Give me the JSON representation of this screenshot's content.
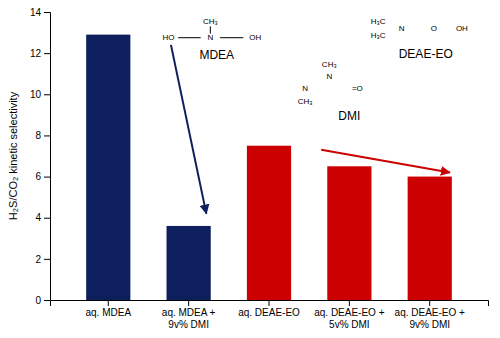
{
  "chart_data": {
    "type": "bar",
    "categories": [
      "aq. MDEA",
      "aq. MDEA +\n9v% DMI",
      "aq. DEAE-EO",
      "aq. DEAE-EO +\n5v% DMI",
      "aq. DEAE-EO +\n9v% DMI"
    ],
    "values": [
      12.9,
      3.6,
      7.5,
      6.5,
      6.0
    ],
    "colors": [
      "#0d1f5c",
      "#0d1f5c",
      "#cc0000",
      "#cc0000",
      "#cc0000"
    ],
    "ylabel": "H₂S/CO₂ kinetic selectivity",
    "ylim": [
      0,
      14
    ],
    "yticks": [
      0,
      2,
      4,
      6,
      8,
      10,
      12,
      14
    ],
    "grid": false,
    "annotations": [
      "CH₃",
      "HO",
      "N",
      "OH",
      "MDEA",
      "DMI",
      "CH₃",
      "N",
      "N",
      "=O",
      "CH₃",
      "DEAE-EO",
      "H₃C",
      "N",
      "H₃C",
      "O",
      "OH"
    ],
    "arrows": [
      {
        "start": [
          0.78,
          12.4
        ],
        "end": [
          1.22,
          4.2
        ],
        "color": "#0d1f5c"
      },
      {
        "start": [
          2.65,
          7.3
        ],
        "end": [
          4.25,
          6.2
        ],
        "color": "#cc0000"
      }
    ]
  }
}
